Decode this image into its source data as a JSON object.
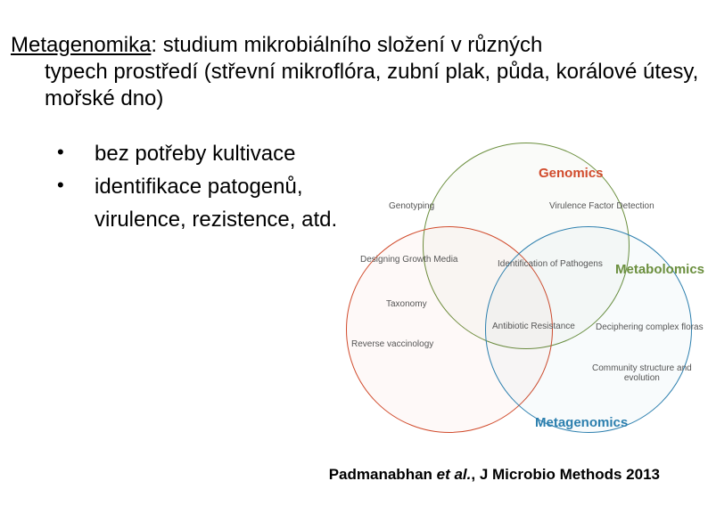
{
  "intro": {
    "term": "Metagenomika",
    "sep": ": ",
    "rest1": "studium mikrobiálního složení v různých",
    "rest2": "typech prostředí (střevní mikroflóra, zubní plak, půda, korálové útesy, mořské dno)"
  },
  "bullets": {
    "b1": "bez potřeby kultivace",
    "b2": "identifikace patogenů,",
    "b2sub": "virulence, rezistence, atd."
  },
  "venn": {
    "colors": {
      "genomics_border": "#d14b2c",
      "metabolomics_border": "#6b8f3e",
      "metagenomics_border": "#2c7fae",
      "label_text": "#555555"
    },
    "titles": {
      "genomics": "Genomics",
      "metabolomics": "Metabolomics",
      "metagenomics": "Metagenomics"
    },
    "labels": {
      "genotyping": "Genotyping",
      "virulence": "Virulence Factor Detection",
      "growth": "Designing Growth Media",
      "pathogens": "Identification of Pathogens",
      "taxonomy": "Taxonomy",
      "antibiotic": "Antibiotic Resistance",
      "deciphering": "Deciphering complex floras",
      "reverse": "Reverse vaccinology",
      "community1": "Community structure and",
      "community2": "evolution"
    }
  },
  "citation": {
    "author": "Padmanabhan ",
    "etal": "et al.",
    "tail": ", J Microbio Methods 2013"
  }
}
